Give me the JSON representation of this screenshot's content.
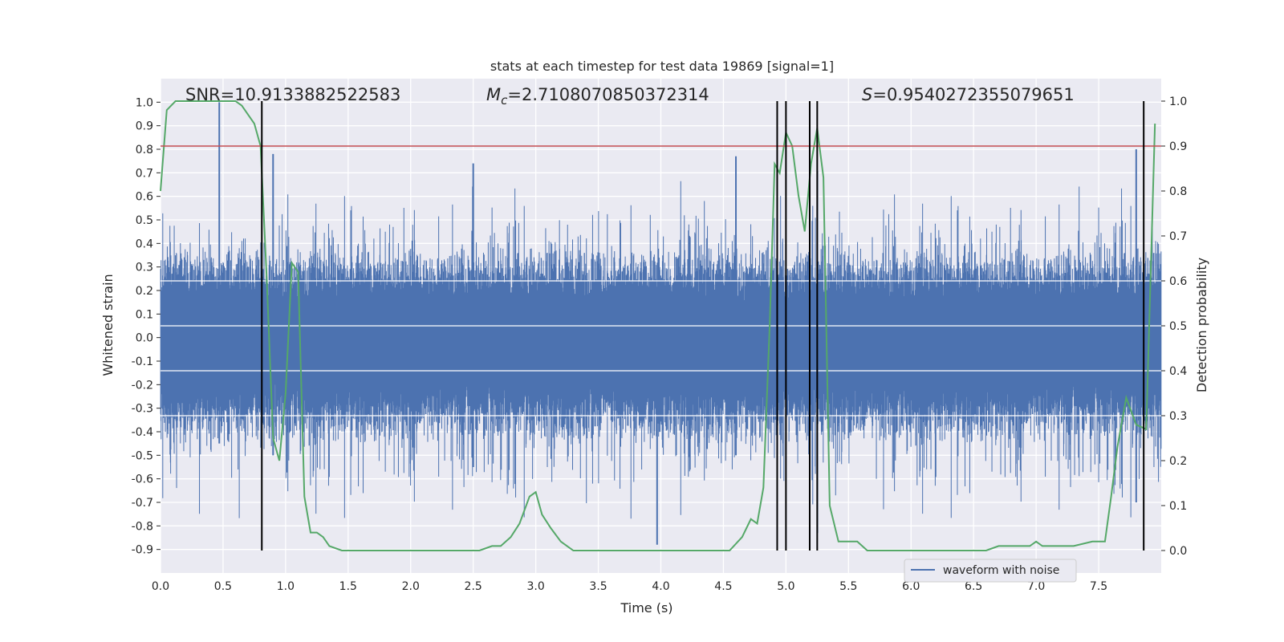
{
  "chart_data": {
    "type": "line",
    "title": "stats at each timestep for test data 19869 [signal=1]",
    "xlabel": "Time (s)",
    "ylabel": "Whitened strain",
    "y2label": "Detection probability",
    "xlim": [
      0,
      8
    ],
    "ylim": [
      -1.0,
      1.1
    ],
    "y2lim": [
      -0.05,
      1.05
    ],
    "xticks": [
      "0.0",
      "0.5",
      "1.0",
      "1.5",
      "2.0",
      "2.5",
      "3.0",
      "3.5",
      "4.0",
      "4.5",
      "5.0",
      "5.5",
      "6.0",
      "6.5",
      "7.0",
      "7.5"
    ],
    "yticks": [
      "1.0",
      "0.9",
      "0.8",
      "0.7",
      "0.6",
      "0.5",
      "0.4",
      "0.3",
      "0.2",
      "0.1",
      "0.0",
      "-0.1",
      "-0.2",
      "-0.3",
      "-0.4",
      "-0.5",
      "-0.6",
      "-0.7",
      "-0.8",
      "-0.9"
    ],
    "y2ticks": [
      "1.0",
      "0.9",
      "0.8",
      "0.7",
      "0.6",
      "0.5",
      "0.4",
      "0.3",
      "0.2",
      "0.1",
      "0.0"
    ],
    "annotations": {
      "snr": "SNR=10.9133882522583",
      "mc_symbol": "M",
      "mc_sub": "c",
      "mc_value": "=2.7108070850372314",
      "s_symbol": "S",
      "s_value": "=0.9540272355079651"
    },
    "threshold": {
      "y2": 0.9,
      "color": "#c44e52"
    },
    "vlines_time": [
      0.81,
      4.93,
      5.0,
      5.19,
      5.25,
      7.86
    ],
    "legend": {
      "label": "waveform with noise",
      "position": "lower-right"
    },
    "series": [
      {
        "name": "waveform with noise",
        "color": "#4c72b0",
        "style": "dense noise, core amplitude about 0.25, spikes to 1.0"
      },
      {
        "name": "detection probability",
        "color": "#55a868",
        "x": [
          0.0,
          0.05,
          0.12,
          0.2,
          0.3,
          0.4,
          0.5,
          0.6,
          0.65,
          0.7,
          0.75,
          0.8,
          0.85,
          0.9,
          0.95,
          1.0,
          1.05,
          1.1,
          1.15,
          1.2,
          1.25,
          1.3,
          1.35,
          1.45,
          1.6,
          1.8,
          2.0,
          2.2,
          2.4,
          2.55,
          2.65,
          2.72,
          2.8,
          2.87,
          2.95,
          3.0,
          3.05,
          3.12,
          3.2,
          3.25,
          3.3,
          3.4,
          3.6,
          3.8,
          4.0,
          4.2,
          4.4,
          4.55,
          4.65,
          4.72,
          4.77,
          4.82,
          4.87,
          4.91,
          4.95,
          5.0,
          5.05,
          5.1,
          5.15,
          5.2,
          5.25,
          5.3,
          5.35,
          5.42,
          5.5,
          5.57,
          5.65,
          5.8,
          6.0,
          6.2,
          6.4,
          6.6,
          6.7,
          6.8,
          6.85,
          6.95,
          7.0,
          7.05,
          7.15,
          7.3,
          7.45,
          7.55,
          7.6,
          7.65,
          7.72,
          7.8,
          7.88,
          7.95
        ],
        "y": [
          0.8,
          0.98,
          1.0,
          1.0,
          1.0,
          1.0,
          1.0,
          1.0,
          0.99,
          0.97,
          0.95,
          0.9,
          0.6,
          0.25,
          0.2,
          0.35,
          0.64,
          0.62,
          0.12,
          0.04,
          0.04,
          0.03,
          0.01,
          0.0,
          0.0,
          0.0,
          0.0,
          0.0,
          0.0,
          0.0,
          0.01,
          0.01,
          0.03,
          0.06,
          0.12,
          0.13,
          0.08,
          0.05,
          0.02,
          0.01,
          0.0,
          0.0,
          0.0,
          0.0,
          0.0,
          0.0,
          0.0,
          0.0,
          0.03,
          0.07,
          0.06,
          0.14,
          0.5,
          0.86,
          0.84,
          0.93,
          0.9,
          0.79,
          0.71,
          0.86,
          0.94,
          0.83,
          0.1,
          0.02,
          0.02,
          0.02,
          0.0,
          0.0,
          0.0,
          0.0,
          0.0,
          0.0,
          0.01,
          0.01,
          0.01,
          0.01,
          0.02,
          0.01,
          0.01,
          0.01,
          0.02,
          0.02,
          0.12,
          0.23,
          0.34,
          0.28,
          0.27,
          0.95
        ]
      }
    ]
  }
}
